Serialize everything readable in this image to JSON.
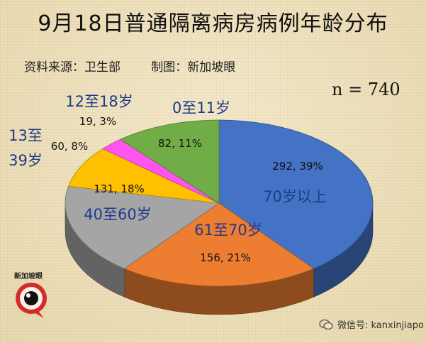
{
  "header": {
    "title": "9月18日普通隔离病房病例年龄分布",
    "source": "资料来源：卫生部        制图：新加坡眼",
    "n_label": "n = 740"
  },
  "chart_data": {
    "type": "pie",
    "title": "9月18日普通隔离病房病例年龄分布",
    "total_label": "n = 740",
    "slices": [
      {
        "name": "70岁以上",
        "value": 292,
        "percent": 39,
        "value_label": "292, 39%",
        "color": "#4472c4"
      },
      {
        "name": "61至70岁",
        "value": 156,
        "percent": 21,
        "value_label": "156, 21%",
        "color": "#ed7d31"
      },
      {
        "name": "40至60岁",
        "value": 131,
        "percent": 18,
        "value_label": "131, 18%",
        "color": "#a5a5a5"
      },
      {
        "name": "13至39岁",
        "value": 60,
        "percent": 8,
        "value_label": "60, 8%",
        "color": "#ffc000"
      },
      {
        "name": "12至18岁",
        "value": 19,
        "percent": 3,
        "value_label": "19, 3%",
        "color": "#ff55ee"
      },
      {
        "name": "0至11岁",
        "value": 82,
        "percent": 11,
        "value_label": "82, 11%",
        "color": "#70ad47"
      }
    ]
  },
  "labels": {
    "label_70": "70岁以上",
    "label_61": "61至70岁",
    "label_40": "40至60岁",
    "label_13_line1": "13至",
    "label_13_line2": "39岁",
    "label_12": "12至18岁",
    "label_0": "0至11岁"
  },
  "watermark": {
    "logo_text": "新加坡眼",
    "wechat_text": "微信号: kanxinjiapo"
  },
  "colors": {
    "category_label": "#1f3a8a",
    "value_label": "#111111"
  }
}
